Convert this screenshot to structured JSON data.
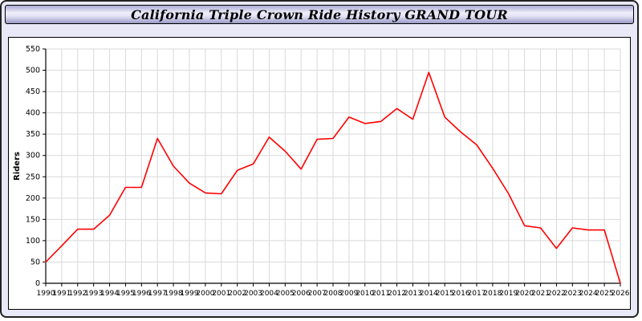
{
  "chart_data": {
    "type": "line",
    "title": "California Triple Crown Ride History GRAND TOUR",
    "ylabel": "Riders",
    "xlabel": "",
    "ylim": [
      0,
      550
    ],
    "ytick_step": 50,
    "grid": true,
    "legend": "none",
    "categories": [
      "1990",
      "1991",
      "1992",
      "1993",
      "1994",
      "1995",
      "1996",
      "1997",
      "1998",
      "1999",
      "2000",
      "2001",
      "2002",
      "2003",
      "2004",
      "2005",
      "2006",
      "2007",
      "2008",
      "2009",
      "2010",
      "2011",
      "2012",
      "2013",
      "2014",
      "2015",
      "2016",
      "2017",
      "2018",
      "2019",
      "2020",
      "2021",
      "2022",
      "2023",
      "2024",
      "2025",
      "2026"
    ],
    "series": [
      {
        "name": "Riders",
        "color": "#ff0000",
        "values": [
          50,
          88,
          127,
          127,
          160,
          225,
          225,
          340,
          275,
          235,
          212,
          210,
          265,
          280,
          343,
          310,
          268,
          338,
          340,
          390,
          375,
          380,
          410,
          385,
          495,
          390,
          355,
          325,
          270,
          210,
          135,
          130,
          82,
          130,
          125,
          125,
          0
        ]
      }
    ],
    "colors": {
      "line": "#ff0000",
      "grid": "#d9d9d9",
      "axis": "#000000",
      "panel_bg": "#ffffff",
      "page_bg": "#e8e8f6"
    }
  }
}
